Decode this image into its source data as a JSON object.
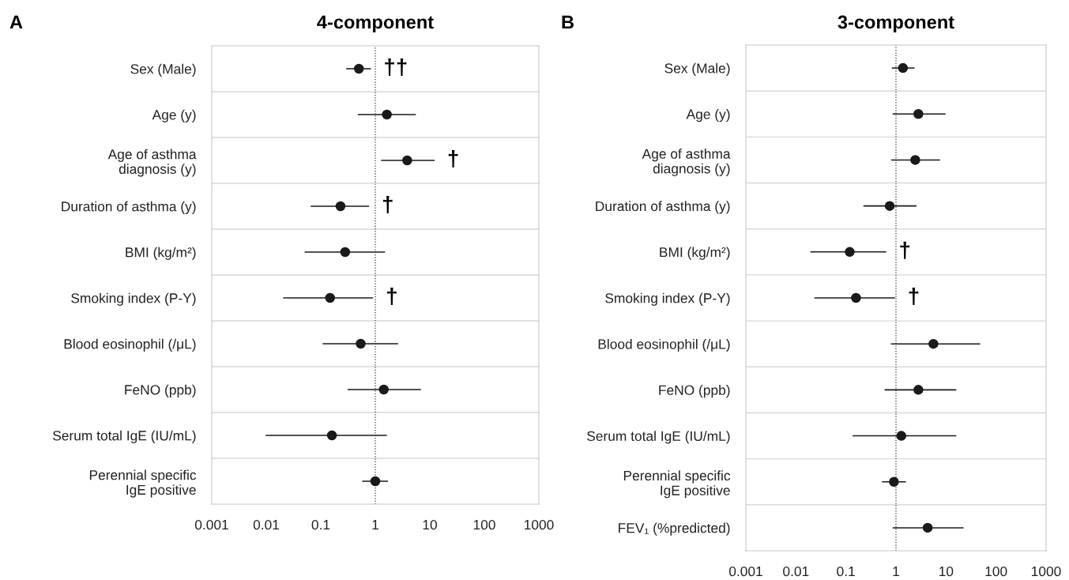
{
  "chart_data": [
    {
      "type": "scatter",
      "title": "4-component",
      "categories": [
        "Sex (Male)",
        "Age (y)",
        "Age of asthma\ndiagnosis (y)",
        "Duration of asthma (y)",
        "BMI (kg/m²)",
        "Smoking index (P-Y)",
        "Blood eosinophil (/μL)",
        "FeNO (ppb)",
        "Serum total IgE (IU/mL)",
        "Perennial specific\nIgE positive"
      ],
      "values": [
        0.5,
        1.63,
        3.85,
        0.23,
        0.28,
        0.148,
        0.54,
        1.43,
        0.16,
        1.0
      ],
      "errors": [
        [
          0.3,
          0.81
        ],
        [
          0.49,
          5.4
        ],
        [
          1.31,
          11.9
        ],
        [
          0.067,
          0.75
        ],
        [
          0.052,
          1.47
        ],
        [
          0.021,
          0.89
        ],
        [
          0.111,
          2.55
        ],
        [
          0.32,
          6.7
        ],
        [
          0.01,
          1.59
        ],
        [
          0.59,
          1.67
        ]
      ],
      "value_labels": [
        "††",
        null,
        "†",
        "†",
        null,
        "†",
        null,
        null,
        null,
        null
      ],
      "color": "#1a1a1a",
      "marker": "circle",
      "log": "x",
      "grid": "y",
      "orientation": "horizontal",
      "xlim": [
        0.001,
        1000
      ],
      "xticks": [
        0.001,
        0.01,
        0.1,
        1,
        10,
        100,
        1000
      ],
      "ref_lines": [
        {
          "axis": "x",
          "value": 1,
          "color": "#333333",
          "line_style": "dotted"
        }
      ],
      "annotations": [
        "A"
      ]
    },
    {
      "type": "scatter",
      "title": "3-component",
      "categories": [
        "Sex (Male)",
        "Age (y)",
        "Age of asthma\ndiagnosis (y)",
        "Duration of asthma (y)",
        "BMI (kg/m²)",
        "Smoking index (P-Y)",
        "Blood eosinophil (/μL)",
        "FeNO (ppb)",
        "Serum total IgE (IU/mL)",
        "Perennial specific\nIgE positive",
        "FEV₁ (%predicted)"
      ],
      "values": [
        1.38,
        2.8,
        2.43,
        0.75,
        0.119,
        0.159,
        5.6,
        2.8,
        1.28,
        0.91,
        4.3
      ],
      "errors": [
        [
          0.85,
          2.29
        ],
        [
          0.88,
          9.5
        ],
        [
          0.82,
          7.4
        ],
        [
          0.23,
          2.5
        ],
        [
          0.02,
          0.62
        ],
        [
          0.024,
          0.93
        ],
        [
          0.81,
          47
        ],
        [
          0.61,
          15.6
        ],
        [
          0.14,
          15.6
        ],
        [
          0.54,
          1.54
        ],
        [
          0.88,
          21.8
        ]
      ],
      "value_labels": [
        null,
        null,
        null,
        null,
        "†",
        "†",
        null,
        null,
        null,
        null,
        null
      ],
      "color": "#1a1a1a",
      "marker": "circle",
      "log": "x",
      "grid": "y",
      "orientation": "horizontal",
      "xlim": [
        0.001,
        1000
      ],
      "xticks": [
        0.001,
        0.01,
        0.1,
        1,
        10,
        100,
        1000
      ],
      "ref_lines": [
        {
          "axis": "x",
          "value": 1,
          "color": "#333333",
          "line_style": "dotted"
        }
      ],
      "annotations": [
        "B"
      ]
    }
  ]
}
